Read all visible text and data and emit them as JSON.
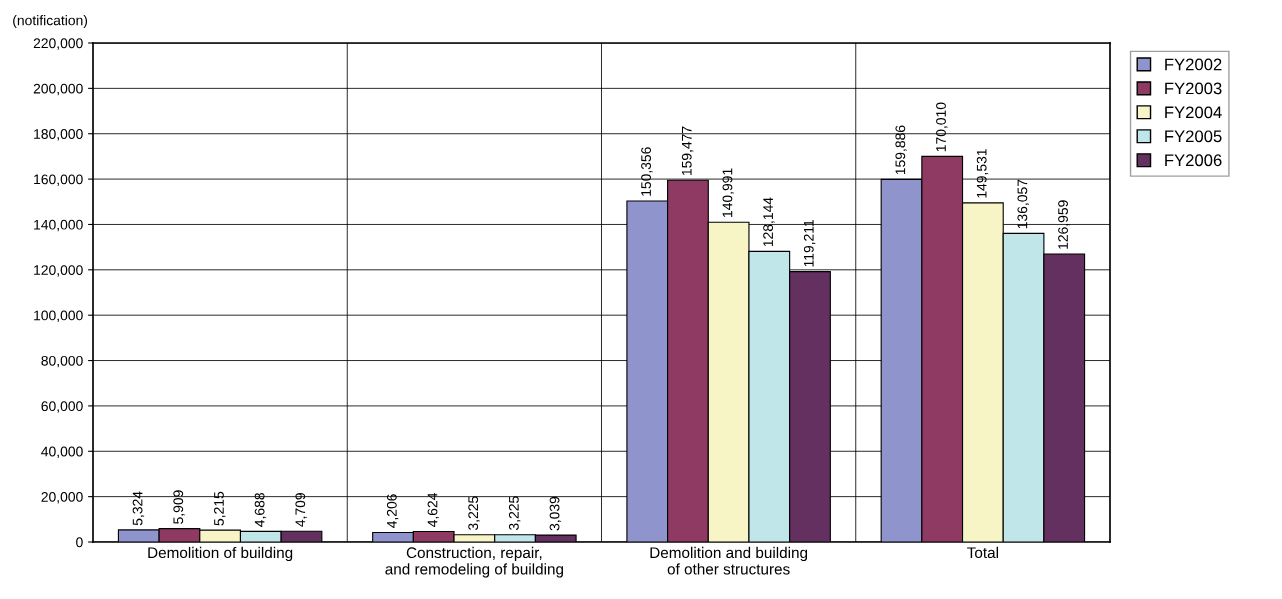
{
  "chart_data": {
    "type": "bar",
    "ylabel": "(notification)",
    "categories": [
      "Demolition of building",
      "Construction, repair,\nand remodeling of building",
      "Demolition and building\nof other structures",
      "Total"
    ],
    "series": [
      {
        "name": "FY2002",
        "color": "#8f95cc",
        "values": [
          5324,
          4206,
          150356,
          159886
        ],
        "value_labels": [
          "5,324",
          "4,206",
          "150,356",
          "159,886"
        ]
      },
      {
        "name": "FY2003",
        "color": "#8e3a63",
        "values": [
          5909,
          4624,
          159477,
          170010
        ],
        "value_labels": [
          "5,909",
          "4,624",
          "159,477",
          "170,010"
        ]
      },
      {
        "name": "FY2004",
        "color": "#f7f4c6",
        "values": [
          5215,
          3225,
          140991,
          149531
        ],
        "value_labels": [
          "5,215",
          "3,225",
          "140,991",
          "149,531"
        ]
      },
      {
        "name": "FY2005",
        "color": "#c1e6ea",
        "values": [
          4688,
          3225,
          128144,
          136057
        ],
        "value_labels": [
          "4,688",
          "3,225",
          "128,144",
          "136,057"
        ]
      },
      {
        "name": "FY2006",
        "color": "#63305f",
        "values": [
          4709,
          3039,
          119211,
          126959
        ],
        "value_labels": [
          "4,709",
          "3,039",
          "119,211",
          "126,959"
        ]
      }
    ],
    "ylim": [
      0,
      220000
    ],
    "yticks": [
      {
        "value": 0,
        "label": "0"
      },
      {
        "value": 20000,
        "label": "20,000"
      },
      {
        "value": 40000,
        "label": "40,000"
      },
      {
        "value": 60000,
        "label": "60,000"
      },
      {
        "value": 80000,
        "label": "80,000"
      },
      {
        "value": 100000,
        "label": "100,000"
      },
      {
        "value": 120000,
        "label": "120,000"
      },
      {
        "value": 140000,
        "label": "140,000"
      },
      {
        "value": 160000,
        "label": "160,000"
      },
      {
        "value": 180000,
        "label": "180,000"
      },
      {
        "value": 200000,
        "label": "200,000"
      },
      {
        "value": 220000,
        "label": "220,000"
      }
    ],
    "grid": true,
    "legend": "top right"
  }
}
